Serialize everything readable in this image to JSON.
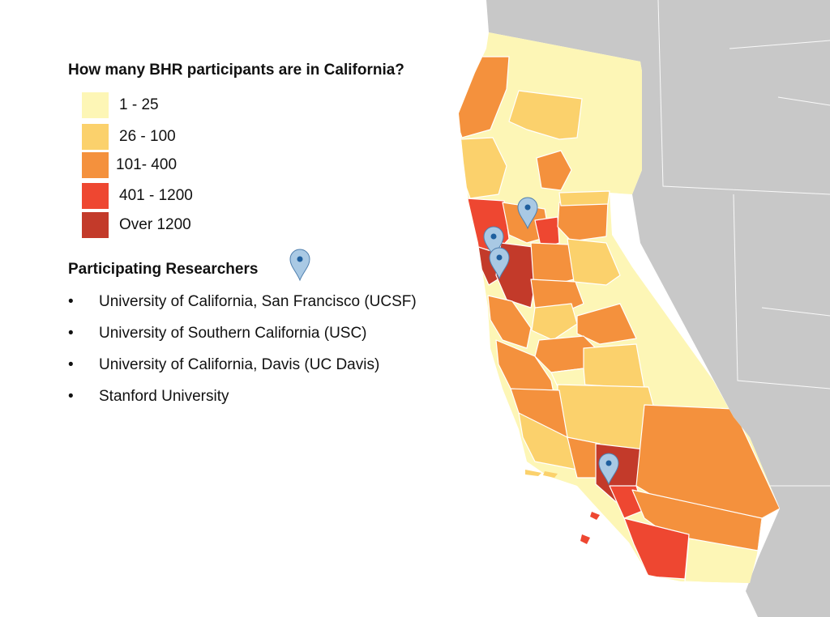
{
  "title": "How many BHR participants are in California?",
  "legend": {
    "items": [
      {
        "label": "1 - 25",
        "color": "#fdf6b6"
      },
      {
        "label": "26 - 100",
        "color": "#fbd16c"
      },
      {
        "label": "101- 400",
        "color": "#f4913d"
      },
      {
        "label": "401 - 1200",
        "color": "#ee4731"
      },
      {
        "label": "Over 1200",
        "color": "#c33a2a"
      }
    ]
  },
  "researchers": {
    "title": "Participating Researchers",
    "bullet": "•",
    "items": [
      "University of California, San Francisco (UCSF)",
      "University of Southern California (USC)",
      "University of California, Davis (UC Davis)",
      "Stanford University"
    ]
  },
  "colors": {
    "neighbor_states": "#c8c8c8",
    "state_borders": "#ffffff",
    "pin": "#a9c9e4",
    "pin_dot": "#1f5f9e"
  },
  "pin_icon": "map-marker-icon"
}
